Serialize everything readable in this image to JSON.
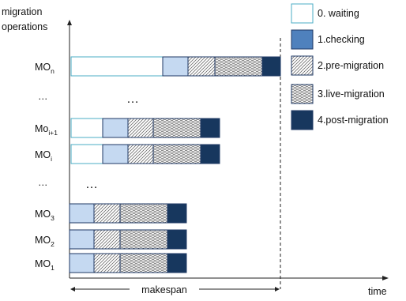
{
  "axes": {
    "y_label_line1": "migration",
    "y_label_line2": "operations",
    "x_label": "time",
    "makespan_label": "makespan"
  },
  "legend": [
    {
      "label": "0. waiting",
      "phase": "waiting"
    },
    {
      "label": "1.checking",
      "phase": "checking"
    },
    {
      "label": "2.pre-migration",
      "phase": "pre"
    },
    {
      "label": "3.live-migration",
      "phase": "live"
    },
    {
      "label": "4.post-migration",
      "phase": "post"
    }
  ],
  "ellipsis": "…",
  "rows": [
    {
      "name": "MO",
      "sub": "n",
      "segments": [
        {
          "phase": "waiting",
          "duration": 116
        },
        {
          "phase": "checking",
          "duration": 32
        },
        {
          "phase": "pre",
          "duration": 34
        },
        {
          "phase": "live",
          "duration": 60
        },
        {
          "phase": "post",
          "duration": 23
        }
      ]
    },
    {
      "name": "Mo",
      "sub": "i+1",
      "segments": [
        {
          "phase": "waiting",
          "duration": 40
        },
        {
          "phase": "checking",
          "duration": 32
        },
        {
          "phase": "pre",
          "duration": 32
        },
        {
          "phase": "live",
          "duration": 60
        },
        {
          "phase": "post",
          "duration": 24
        }
      ]
    },
    {
      "name": "MO",
      "sub": "i",
      "segments": [
        {
          "phase": "waiting",
          "duration": 40
        },
        {
          "phase": "checking",
          "duration": 32
        },
        {
          "phase": "pre",
          "duration": 32
        },
        {
          "phase": "live",
          "duration": 60
        },
        {
          "phase": "post",
          "duration": 24
        }
      ]
    },
    {
      "name": "MO",
      "sub": "3",
      "segments": [
        {
          "phase": "checking",
          "duration": 31
        },
        {
          "phase": "pre",
          "duration": 33
        },
        {
          "phase": "live",
          "duration": 60
        },
        {
          "phase": "post",
          "duration": 24
        }
      ]
    },
    {
      "name": "MO",
      "sub": "2",
      "segments": [
        {
          "phase": "checking",
          "duration": 31
        },
        {
          "phase": "pre",
          "duration": 33
        },
        {
          "phase": "live",
          "duration": 60
        },
        {
          "phase": "post",
          "duration": 24
        }
      ]
    },
    {
      "name": "MO",
      "sub": "1",
      "segments": [
        {
          "phase": "checking",
          "duration": 31
        },
        {
          "phase": "pre",
          "duration": 33
        },
        {
          "phase": "live",
          "duration": 60
        },
        {
          "phase": "post",
          "duration": 24
        }
      ]
    }
  ],
  "colors": {
    "waiting": "#ffffff",
    "waiting_border": "#4bacc6",
    "checking": "#c5d9f1",
    "checking_legend": "#4f81bd",
    "pre_bg": "#ffffff",
    "pre_line": "#555555",
    "live_bg": "#ffffff",
    "live_line": "#555555",
    "post": "#17375e",
    "border": "#1f3864"
  }
}
